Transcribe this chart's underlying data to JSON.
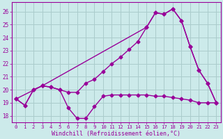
{
  "xlabel": "Windchill (Refroidissement éolien,°C)",
  "bg_color": "#cceaea",
  "grid_color": "#aacccc",
  "line_color": "#990099",
  "xlim": [
    -0.5,
    23.5
  ],
  "ylim": [
    17.5,
    26.7
  ],
  "yticks": [
    18,
    19,
    20,
    21,
    22,
    23,
    24,
    25,
    26
  ],
  "xticks": [
    0,
    1,
    2,
    3,
    4,
    5,
    6,
    7,
    8,
    9,
    10,
    11,
    12,
    13,
    14,
    15,
    16,
    17,
    18,
    19,
    20,
    21,
    22,
    23
  ],
  "series1_x": [
    0,
    1,
    2,
    3,
    4,
    5,
    6,
    7,
    8,
    9,
    10,
    11,
    12,
    13,
    14,
    15,
    16,
    17,
    18,
    19,
    20,
    21,
    22,
    23
  ],
  "series1_y": [
    19.3,
    18.8,
    20.0,
    20.3,
    20.2,
    20.0,
    18.6,
    17.8,
    17.8,
    18.7,
    19.5,
    19.6,
    19.6,
    19.6,
    19.6,
    19.6,
    19.5,
    19.5,
    19.4,
    19.3,
    19.2,
    19.0,
    19.0,
    19.0
  ],
  "series2_x": [
    0,
    1,
    2,
    3,
    4,
    5,
    6,
    7,
    8,
    9,
    10,
    11,
    12,
    13,
    14,
    15,
    16,
    17,
    18,
    19,
    20,
    21,
    22,
    23
  ],
  "series2_y": [
    19.3,
    18.8,
    20.0,
    20.3,
    20.2,
    20.0,
    19.8,
    19.8,
    20.5,
    20.8,
    21.4,
    22.0,
    22.5,
    23.1,
    23.7,
    24.8,
    25.9,
    25.8,
    26.2,
    25.3,
    23.3,
    21.5,
    20.5,
    19.0
  ],
  "series3_x": [
    0,
    3,
    15,
    16,
    17,
    18,
    19,
    20,
    21,
    22,
    23
  ],
  "series3_y": [
    19.3,
    20.3,
    24.8,
    25.9,
    25.8,
    26.2,
    25.3,
    23.3,
    21.5,
    20.5,
    19.0
  ]
}
